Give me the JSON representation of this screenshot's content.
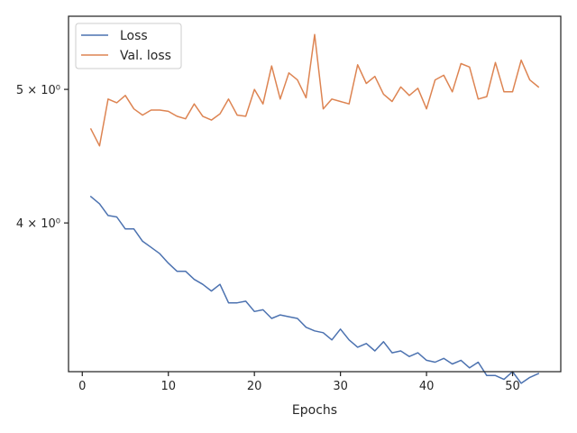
{
  "chart_data": {
    "type": "line",
    "xlabel": "Epochs",
    "ylabel": "",
    "y_scale": "log",
    "xlim": [
      -1.6,
      55.6
    ],
    "ylim": [
      3.12,
      5.65
    ],
    "x_ticks": [
      0,
      10,
      20,
      30,
      40,
      50
    ],
    "y_ticks": [
      {
        "value": 4,
        "label": "4 × 10⁰"
      },
      {
        "value": 5,
        "label": "5 × 10⁰"
      }
    ],
    "grid": false,
    "legend_position": "top-left",
    "series": [
      {
        "name": "Loss",
        "color": "#4c72b0",
        "values": [
          4.18,
          4.13,
          4.05,
          4.04,
          3.96,
          3.96,
          3.88,
          3.84,
          3.8,
          3.74,
          3.69,
          3.69,
          3.64,
          3.61,
          3.57,
          3.61,
          3.5,
          3.5,
          3.51,
          3.45,
          3.46,
          3.41,
          3.43,
          3.42,
          3.41,
          3.36,
          3.34,
          3.33,
          3.29,
          3.35,
          3.29,
          3.25,
          3.27,
          3.23,
          3.28,
          3.22,
          3.23,
          3.2,
          3.22,
          3.18,
          3.17,
          3.19,
          3.16,
          3.18,
          3.14,
          3.17,
          3.1,
          3.1,
          3.08,
          3.12,
          3.06,
          3.09,
          3.11
        ]
      },
      {
        "name": "Val. loss",
        "color": "#dd8452",
        "values": [
          4.68,
          4.55,
          4.92,
          4.89,
          4.95,
          4.84,
          4.79,
          4.83,
          4.83,
          4.82,
          4.78,
          4.76,
          4.88,
          4.78,
          4.75,
          4.8,
          4.92,
          4.79,
          4.78,
          5.0,
          4.88,
          5.2,
          4.92,
          5.14,
          5.08,
          4.93,
          5.48,
          4.84,
          4.92,
          4.9,
          4.88,
          5.21,
          5.05,
          5.11,
          4.96,
          4.9,
          5.02,
          4.95,
          5.01,
          4.84,
          5.08,
          5.12,
          4.98,
          5.22,
          5.19,
          4.92,
          4.94,
          5.23,
          4.98,
          4.98,
          5.25,
          5.08,
          5.02
        ]
      }
    ]
  }
}
